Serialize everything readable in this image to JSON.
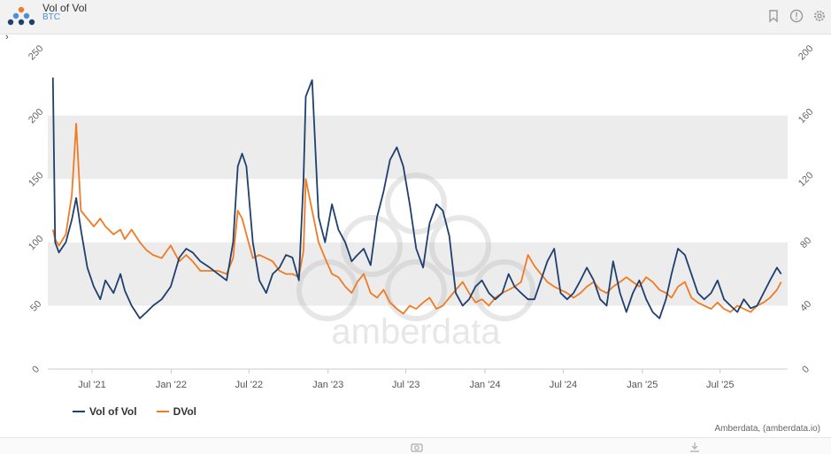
{
  "header": {
    "title": "Vol of Vol",
    "subtitle": "BTC"
  },
  "chart_data": {
    "type": "line",
    "x": [
      "2021-04-01",
      "2021-04-06",
      "2021-04-15",
      "2021-05-01",
      "2021-05-15",
      "2021-05-25",
      "2021-06-05",
      "2021-06-20",
      "2021-07-05",
      "2021-07-20",
      "2021-08-01",
      "2021-08-20",
      "2021-09-05",
      "2021-09-15",
      "2021-10-01",
      "2021-10-20",
      "2021-11-05",
      "2021-11-20",
      "2021-12-10",
      "2021-12-31",
      "2022-01-20",
      "2022-02-05",
      "2022-02-20",
      "2022-03-10",
      "2022-04-01",
      "2022-04-20",
      "2022-05-10",
      "2022-05-25",
      "2022-06-05",
      "2022-06-15",
      "2022-06-25",
      "2022-07-10",
      "2022-07-25",
      "2022-08-10",
      "2022-08-25",
      "2022-09-10",
      "2022-09-25",
      "2022-10-10",
      "2022-10-25",
      "2022-11-05",
      "2022-11-10",
      "2022-11-25",
      "2022-12-10",
      "2022-12-25",
      "2023-01-10",
      "2023-01-25",
      "2023-02-10",
      "2023-02-25",
      "2023-03-10",
      "2023-03-25",
      "2023-04-10",
      "2023-04-25",
      "2023-05-10",
      "2023-05-25",
      "2023-06-10",
      "2023-06-25",
      "2023-07-10",
      "2023-07-25",
      "2023-08-10",
      "2023-08-25",
      "2023-09-10",
      "2023-09-25",
      "2023-10-10",
      "2023-10-25",
      "2023-11-10",
      "2023-11-25",
      "2023-12-10",
      "2023-12-25",
      "2024-01-10",
      "2024-01-25",
      "2024-02-10",
      "2024-02-25",
      "2024-03-10",
      "2024-03-25",
      "2024-04-10",
      "2024-04-25",
      "2024-05-10",
      "2024-05-25",
      "2024-06-10",
      "2024-06-25",
      "2024-07-10",
      "2024-07-25",
      "2024-08-10",
      "2024-08-25",
      "2024-09-10",
      "2024-09-25",
      "2024-10-10",
      "2024-10-25",
      "2024-11-10",
      "2024-11-25",
      "2024-12-10",
      "2024-12-25",
      "2025-01-10",
      "2025-01-25",
      "2025-02-10",
      "2025-02-25",
      "2025-03-10",
      "2025-03-25",
      "2025-04-10",
      "2025-04-25",
      "2025-05-10",
      "2025-05-25",
      "2025-06-10",
      "2025-06-25",
      "2025-07-10",
      "2025-07-25",
      "2025-08-10",
      "2025-08-25",
      "2025-09-10",
      "2025-09-25",
      "2025-10-10",
      "2025-10-25",
      "2025-11-10",
      "2025-11-20"
    ],
    "series": [
      {
        "name": "Vol of Vol",
        "axis": "left",
        "color": "#1f3f6e",
        "values": [
          230,
          100,
          92,
          100,
          118,
          135,
          110,
          80,
          65,
          55,
          70,
          60,
          75,
          62,
          50,
          40,
          45,
          50,
          55,
          65,
          88,
          95,
          92,
          85,
          80,
          75,
          70,
          100,
          160,
          170,
          160,
          100,
          70,
          60,
          75,
          80,
          90,
          88,
          70,
          150,
          215,
          228,
          120,
          100,
          130,
          110,
          100,
          85,
          90,
          95,
          82,
          120,
          140,
          165,
          175,
          160,
          130,
          95,
          80,
          115,
          130,
          125,
          105,
          60,
          50,
          55,
          65,
          70,
          60,
          55,
          60,
          75,
          65,
          60,
          55,
          55,
          70,
          85,
          95,
          60,
          55,
          60,
          70,
          80,
          70,
          55,
          50,
          85,
          60,
          45,
          60,
          70,
          55,
          45,
          40,
          55,
          75,
          95,
          90,
          75,
          60,
          55,
          60,
          70,
          55,
          50,
          45,
          55,
          48,
          50,
          60,
          70,
          80,
          75
        ]
      },
      {
        "name": "DVol",
        "axis": "right",
        "color": "#f07b24",
        "values": [
          88,
          82,
          78,
          85,
          110,
          155,
          100,
          95,
          90,
          95,
          90,
          85,
          88,
          82,
          88,
          80,
          75,
          72,
          70,
          78,
          68,
          72,
          68,
          62,
          62,
          62,
          60,
          70,
          100,
          95,
          85,
          70,
          72,
          70,
          68,
          62,
          60,
          60,
          58,
          75,
          120,
          100,
          80,
          70,
          60,
          58,
          52,
          48,
          55,
          60,
          48,
          45,
          50,
          42,
          38,
          35,
          40,
          38,
          42,
          45,
          38,
          40,
          45,
          50,
          55,
          48,
          42,
          44,
          40,
          45,
          48,
          50,
          52,
          55,
          72,
          65,
          60,
          55,
          52,
          50,
          48,
          45,
          48,
          52,
          55,
          50,
          48,
          52,
          55,
          58,
          55,
          52,
          58,
          55,
          50,
          48,
          45,
          52,
          55,
          45,
          42,
          40,
          38,
          42,
          38,
          36,
          40,
          38,
          36,
          40,
          42,
          45,
          50,
          55
        ]
      }
    ],
    "x_ticks": [
      "Jul '21",
      "Jan '22",
      "Jul '22",
      "Jan '23",
      "Jul '23",
      "Jan '24",
      "Jul '24",
      "Jan '25",
      "Jul '25"
    ],
    "x_tick_dates": [
      "2021-07-01",
      "2022-01-01",
      "2022-07-01",
      "2023-01-01",
      "2023-07-01",
      "2024-01-01",
      "2024-07-01",
      "2025-01-01",
      "2025-07-01"
    ],
    "y_left": {
      "ticks": [
        "0",
        "50",
        "100",
        "150",
        "200",
        "250"
      ],
      "range": [
        0,
        250
      ]
    },
    "y_right": {
      "ticks": [
        "0",
        "40",
        "80",
        "120",
        "160",
        "200"
      ],
      "range": [
        0,
        200
      ]
    },
    "x_range": [
      "2021-03-20",
      "2025-12-05"
    ],
    "grid": "alternating horizontal bands",
    "legend_position": "bottom-left",
    "watermark": "amberdata"
  },
  "legend": {
    "item1": "Vol of Vol",
    "item2": "DVol"
  },
  "credit": "Amberdata, (amberdata.io)",
  "colors": {
    "series1": "#1f3f6e",
    "series2": "#f07b24",
    "band": "#ececec",
    "subtitle": "#4a90d9"
  },
  "icons": {
    "logo": "amberdata-dots-logo",
    "bookmark": "bookmark-icon",
    "info": "info-icon",
    "settings": "gear-icon",
    "camera": "camera-icon",
    "download": "download-icon",
    "collapse": "chevron-right-icon"
  }
}
